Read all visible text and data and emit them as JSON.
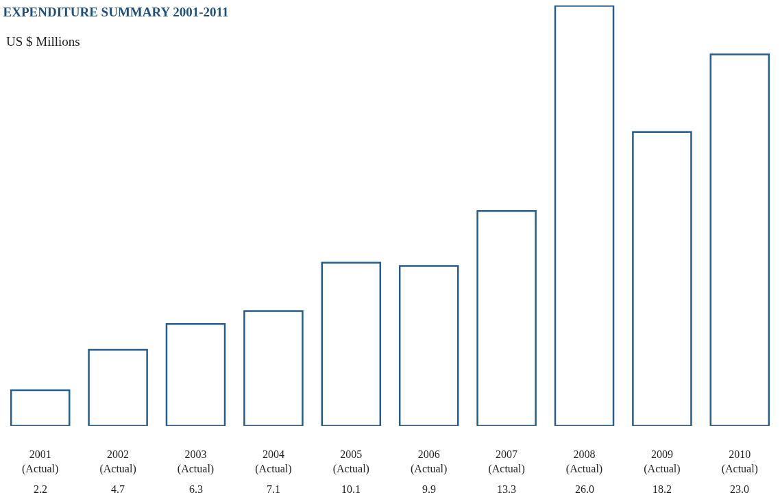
{
  "chart_data": {
    "type": "bar",
    "title": "EXPENDITURE SUMMARY 2001-2011",
    "subtitle": "US $ Millions",
    "categories": [
      "2001\n(Actual)",
      "2002\n(Actual)",
      "2003\n(Actual)",
      "2004\n(Actual)",
      "2005\n(Actual)",
      "2006\n(Actual)",
      "2007\n(Actual)",
      "2008\n(Actual)",
      "2009\n(Actual)",
      "2010\n(Actual)"
    ],
    "values": [
      2.2,
      4.7,
      6.3,
      7.1,
      10.1,
      9.9,
      13.3,
      26.0,
      18.2,
      23.0
    ],
    "value_labels": [
      "2.2",
      "4.7",
      "6.3",
      "7.1",
      "10.1",
      "9.9",
      "13.3",
      "26.0",
      "18.2",
      "23.0"
    ],
    "color": "#245d8f"
  }
}
